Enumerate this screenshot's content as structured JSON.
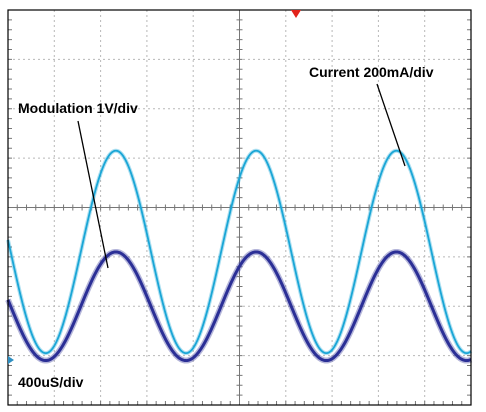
{
  "chart_data": {
    "type": "line",
    "grid": true,
    "grid_divisions": {
      "x": 10,
      "y": 8
    },
    "x_unit_per_div": "400uS/div",
    "x_range_div": [
      0,
      10
    ],
    "y_range_div": [
      -4,
      4
    ],
    "series": [
      {
        "name": "Current 200mA/div",
        "color": "#1aa6d6",
        "scale_label": "Current 200mA/div",
        "waveform": "sine",
        "period_div": 3.03,
        "center_div": -0.9,
        "amplitude_div": 2.05,
        "first_peak_div": 2.33
      },
      {
        "name": "Modulation 1V/div",
        "color": "#2b2f96",
        "scale_label": "Modulation 1V/div",
        "waveform": "sine",
        "period_div": 3.03,
        "center_div": -2.0,
        "amplitude_div": 1.1,
        "first_peak_div": 2.33
      }
    ]
  },
  "annotations": {
    "current_label": "Current 200mA/div",
    "modulation_label": "Modulation 1V/div",
    "timebase_label": "400uS/div"
  },
  "colors": {
    "grid_line": "#b8b8b8",
    "frame": "#000000",
    "trigger_marker": "#e2231a",
    "ground_marker": "#2e8fc2"
  }
}
